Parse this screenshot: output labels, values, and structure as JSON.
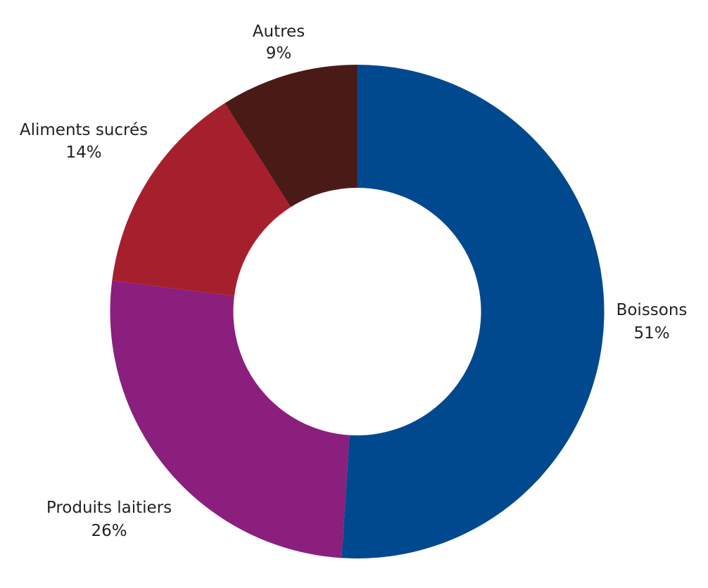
{
  "chart_data": {
    "type": "pie",
    "variant": "donut",
    "categories": [
      "Boissons",
      "Produits laitiers",
      "Aliments sucrés",
      "Autres"
    ],
    "values": [
      51,
      26,
      14,
      9
    ],
    "value_labels": [
      "51%",
      "26%",
      "14%",
      "9%"
    ],
    "colors": [
      "#00498f",
      "#8a1f7e",
      "#a61f2d",
      "#4a1a17"
    ],
    "start": "12 o'clock",
    "direction": "clockwise",
    "title": "",
    "legend": "none",
    "data_labels": "outside"
  }
}
